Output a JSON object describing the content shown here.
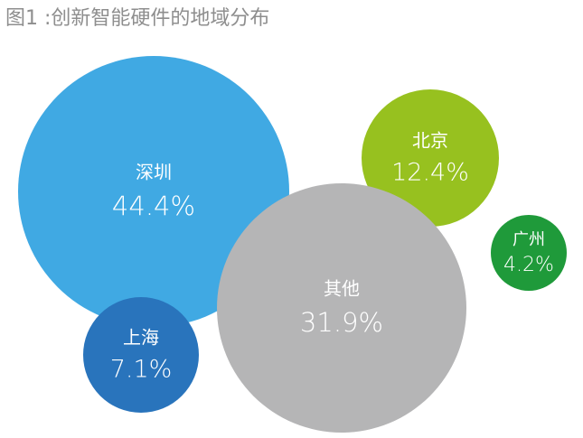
{
  "chart_data": {
    "type": "bubble",
    "title": "图1 :创新智能硬件的地域分布",
    "unit": "%",
    "items": [
      {
        "name": "深圳",
        "label": "44.4%",
        "value": 44.4,
        "color": "#40a9e3"
      },
      {
        "name": "北京",
        "label": "12.4%",
        "value": 12.4,
        "color": "#97c11f"
      },
      {
        "name": "广州",
        "label": "4.2%",
        "value": 4.2,
        "color": "#1f9a3a"
      },
      {
        "name": "其他",
        "label": "31.9%",
        "value": 31.9,
        "color": "#b5b5b6"
      },
      {
        "name": "上海",
        "label": "7.1%",
        "value": 7.1,
        "color": "#2974bc"
      }
    ]
  }
}
